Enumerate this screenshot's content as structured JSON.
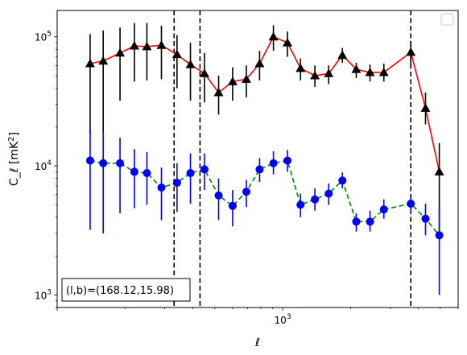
{
  "chart_data": {
    "type": "scatter",
    "title": "",
    "xlabel": "ℓ",
    "ylabel": "C_ℓ  [mK²]",
    "xscale": "log",
    "yscale": "log",
    "xlim": [
      100,
      6000
    ],
    "ylim": [
      800,
      160000
    ],
    "grid": false,
    "legend": {
      "placement": "top-right",
      "entries": []
    },
    "x_tick_labels": [
      {
        "value": 1000,
        "label": "10^3"
      }
    ],
    "y_tick_labels": [
      {
        "value": 1000,
        "label": "10^3"
      },
      {
        "value": 10000,
        "label": "10^4"
      },
      {
        "value": 100000,
        "label": "10^5"
      }
    ],
    "annotation": "(l,b)=(168.12,15.98)",
    "vlines": [
      {
        "x": 330,
        "style": "dashed",
        "color": "#000000"
      },
      {
        "x": 430,
        "style": "dashed",
        "color": "#000000"
      },
      {
        "x": 3700,
        "style": "dashed",
        "color": "#000000"
      }
    ],
    "series": [
      {
        "marker": "triangle",
        "marker_color": "#000000",
        "line_color": "#ff0000",
        "line_style": "solid",
        "points": [
          {
            "x": 140,
            "y": 62000,
            "lo": 18000,
            "hi": 105000
          },
          {
            "x": 160,
            "y": 65000,
            "lo": 18000,
            "hi": 112000
          },
          {
            "x": 190,
            "y": 75000,
            "lo": 32000,
            "hi": 118000
          },
          {
            "x": 220,
            "y": 85000,
            "lo": 45000,
            "hi": 128000
          },
          {
            "x": 250,
            "y": 84000,
            "lo": 46000,
            "hi": 128000
          },
          {
            "x": 290,
            "y": 86000,
            "lo": 47000,
            "hi": 122000
          },
          {
            "x": 340,
            "y": 73000,
            "lo": 40000,
            "hi": 103000
          },
          {
            "x": 390,
            "y": 61000,
            "lo": 32000,
            "hi": 90000
          },
          {
            "x": 450,
            "y": 52000,
            "lo": 31000,
            "hi": 75000
          },
          {
            "x": 520,
            "y": 37000,
            "lo": 25000,
            "hi": 50000
          },
          {
            "x": 600,
            "y": 45000,
            "lo": 32000,
            "hi": 58000
          },
          {
            "x": 690,
            "y": 47000,
            "lo": 34000,
            "hi": 60000
          },
          {
            "x": 790,
            "y": 62000,
            "lo": 46000,
            "hi": 78000
          },
          {
            "x": 910,
            "y": 100000,
            "lo": 78000,
            "hi": 123000
          },
          {
            "x": 1050,
            "y": 90000,
            "lo": 70000,
            "hi": 110000
          },
          {
            "x": 1200,
            "y": 57000,
            "lo": 46000,
            "hi": 68000
          },
          {
            "x": 1390,
            "y": 50000,
            "lo": 41000,
            "hi": 60000
          },
          {
            "x": 1600,
            "y": 52000,
            "lo": 43000,
            "hi": 60000
          },
          {
            "x": 1840,
            "y": 72000,
            "lo": 63000,
            "hi": 82000
          },
          {
            "x": 2120,
            "y": 56000,
            "lo": 48000,
            "hi": 63000
          },
          {
            "x": 2440,
            "y": 53000,
            "lo": 45000,
            "hi": 61000
          },
          {
            "x": 2810,
            "y": 53000,
            "lo": 45000,
            "hi": 62000
          },
          {
            "x": 3700,
            "y": 76000,
            "lo": 60000,
            "hi": 93000
          },
          {
            "x": 4300,
            "y": 28000,
            "lo": 21000,
            "hi": 37000
          },
          {
            "x": 4950,
            "y": 9000,
            "lo": 3000,
            "hi": 15000
          }
        ]
      },
      {
        "marker": "circle",
        "marker_color": "#0000ff",
        "line_color": "#008000",
        "line_style": "dashed",
        "points": [
          {
            "x": 140,
            "y": 11000,
            "lo": 3200,
            "hi": 19000
          },
          {
            "x": 160,
            "y": 10500,
            "lo": 3000,
            "hi": 18000
          },
          {
            "x": 190,
            "y": 10500,
            "lo": 4300,
            "hi": 16500
          },
          {
            "x": 220,
            "y": 9000,
            "lo": 4700,
            "hi": 13500
          },
          {
            "x": 250,
            "y": 8800,
            "lo": 5000,
            "hi": 12800
          },
          {
            "x": 290,
            "y": 6800,
            "lo": 3800,
            "hi": 9700
          },
          {
            "x": 340,
            "y": 7400,
            "lo": 4400,
            "hi": 10500
          },
          {
            "x": 390,
            "y": 8800,
            "lo": 5100,
            "hi": 12500
          },
          {
            "x": 450,
            "y": 9400,
            "lo": 6500,
            "hi": 12500
          },
          {
            "x": 520,
            "y": 5900,
            "lo": 3800,
            "hi": 8000
          },
          {
            "x": 600,
            "y": 4900,
            "lo": 3400,
            "hi": 6500
          },
          {
            "x": 690,
            "y": 6300,
            "lo": 4800,
            "hi": 7800
          },
          {
            "x": 790,
            "y": 9400,
            "lo": 7500,
            "hi": 11500
          },
          {
            "x": 910,
            "y": 10500,
            "lo": 8600,
            "hi": 13000
          },
          {
            "x": 1050,
            "y": 11000,
            "lo": 9000,
            "hi": 13300
          },
          {
            "x": 1200,
            "y": 5000,
            "lo": 4000,
            "hi": 6100
          },
          {
            "x": 1390,
            "y": 5500,
            "lo": 4500,
            "hi": 6700
          },
          {
            "x": 1600,
            "y": 6100,
            "lo": 5000,
            "hi": 7300
          },
          {
            "x": 1840,
            "y": 7700,
            "lo": 6700,
            "hi": 8900
          },
          {
            "x": 2120,
            "y": 3700,
            "lo": 3100,
            "hi": 4300
          },
          {
            "x": 2440,
            "y": 3700,
            "lo": 3100,
            "hi": 4500
          },
          {
            "x": 2810,
            "y": 4600,
            "lo": 3900,
            "hi": 5500
          },
          {
            "x": 3700,
            "y": 5100,
            "lo": 4300,
            "hi": 6000
          },
          {
            "x": 4300,
            "y": 3900,
            "lo": 2900,
            "hi": 5100
          },
          {
            "x": 4950,
            "y": 2900,
            "lo": 1000,
            "hi": 4800
          }
        ]
      }
    ]
  }
}
